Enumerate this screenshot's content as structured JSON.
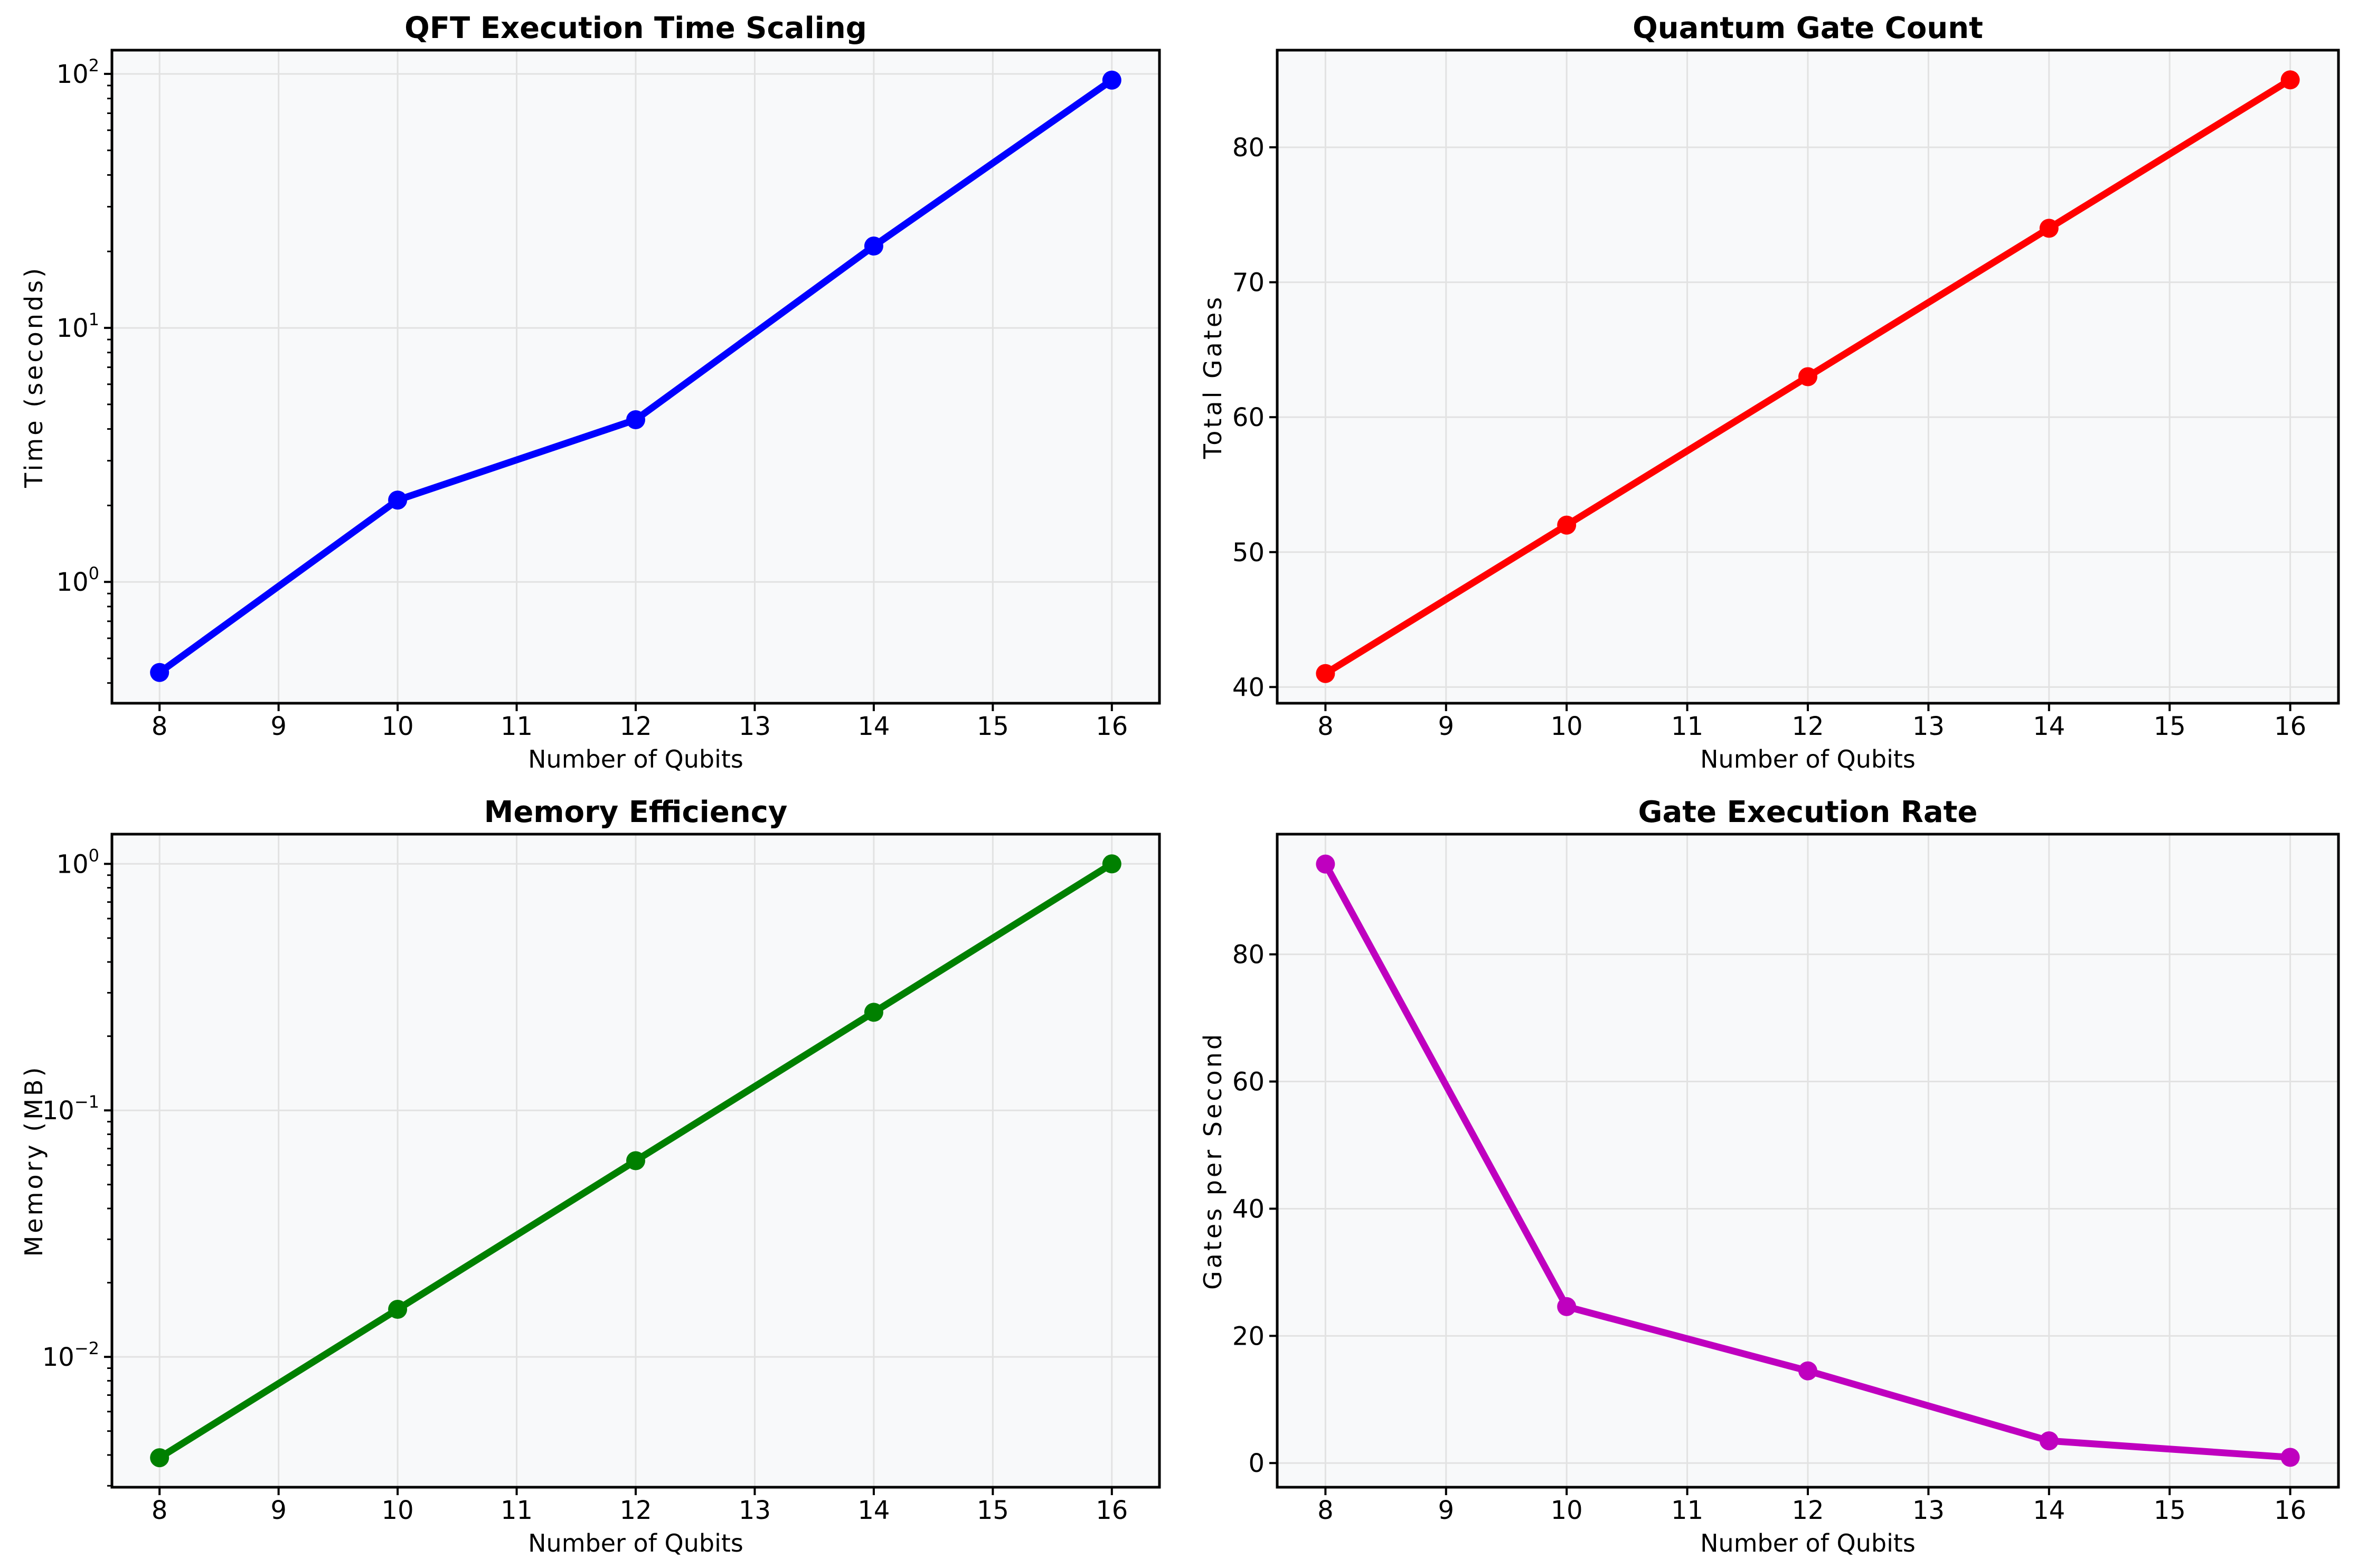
{
  "figure": {
    "background": "#ffffff",
    "axes_background": "#f8f9fa",
    "grid_color": "#e2e2e2",
    "spine_color": "#000000",
    "tick_color": "#000000",
    "text_color": "#000000"
  },
  "chart_data": [
    {
      "type": "line",
      "title": "QFT Execution Time Scaling",
      "xlabel": "Number of Qubits",
      "ylabel": "Time (seconds)",
      "series_color": "#0000ff",
      "marker_style": "circle",
      "grid": true,
      "yscale": "log",
      "x": [
        8,
        10,
        12,
        14,
        16
      ],
      "y": [
        0.44,
        2.1,
        4.35,
        21.0,
        94.5
      ],
      "xticks": [
        8,
        9,
        10,
        11,
        12,
        13,
        14,
        15,
        16
      ],
      "ytick_exponents": [
        0,
        1,
        2
      ],
      "xlim": [
        7.6,
        16.4
      ],
      "ylim": [
        0.333,
        124
      ]
    },
    {
      "type": "line",
      "title": "Quantum Gate Count",
      "xlabel": "Number of Qubits",
      "ylabel": "Total Gates",
      "series_color": "#ff0000",
      "marker_style": "circle",
      "grid": true,
      "yscale": "linear",
      "x": [
        8,
        10,
        12,
        14,
        16
      ],
      "y": [
        41,
        52,
        63,
        74,
        85
      ],
      "xticks": [
        8,
        9,
        10,
        11,
        12,
        13,
        14,
        15,
        16
      ],
      "yticks": [
        40,
        50,
        60,
        70,
        80
      ],
      "xlim": [
        7.6,
        16.4
      ],
      "ylim": [
        38.8,
        87.2
      ]
    },
    {
      "type": "line",
      "title": "Memory Efficiency",
      "xlabel": "Number of Qubits",
      "ylabel": "Memory (MB)",
      "series_color": "#008000",
      "marker_style": "circle",
      "grid": true,
      "yscale": "log",
      "x": [
        8,
        10,
        12,
        14,
        16
      ],
      "y": [
        0.0039,
        0.0156,
        0.0625,
        0.25,
        1.0
      ],
      "xticks": [
        8,
        9,
        10,
        11,
        12,
        13,
        14,
        15,
        16
      ],
      "ytick_exponents": [
        -2,
        -1,
        0
      ],
      "xlim": [
        7.6,
        16.4
      ],
      "ylim": [
        0.00296,
        1.32
      ]
    },
    {
      "type": "line",
      "title": "Gate Execution Rate",
      "xlabel": "Number of Qubits",
      "ylabel": "Gates per Second",
      "series_color": "#bf00bf",
      "marker_style": "circle",
      "grid": true,
      "yscale": "linear",
      "x": [
        8,
        10,
        12,
        14,
        16
      ],
      "y": [
        94.2,
        24.6,
        14.5,
        3.5,
        0.9
      ],
      "xticks": [
        8,
        9,
        10,
        11,
        12,
        13,
        14,
        15,
        16
      ],
      "yticks": [
        0,
        20,
        40,
        60,
        80
      ],
      "xlim": [
        7.6,
        16.4
      ],
      "ylim": [
        -3.8,
        98.9
      ]
    }
  ]
}
